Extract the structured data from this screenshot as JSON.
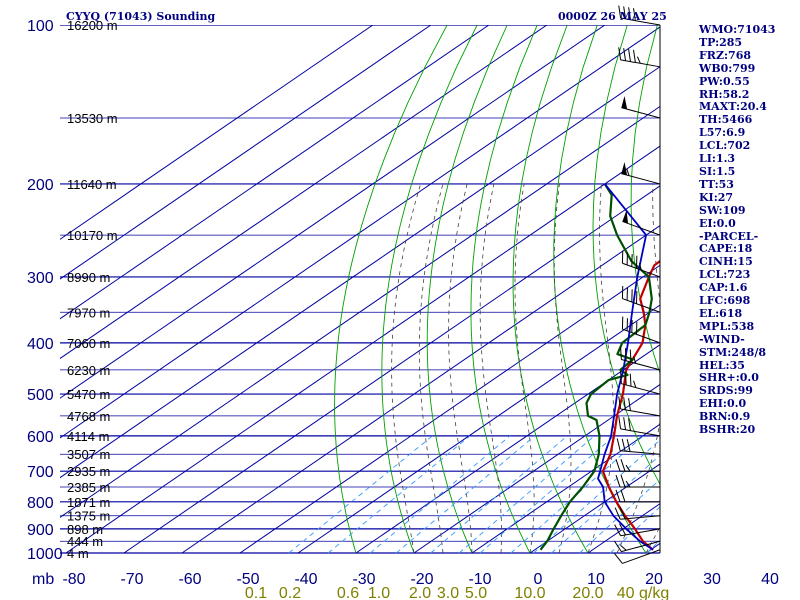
{
  "title": "CYYQ (71043) Sounding",
  "timestamp": "0000Z 26 MAY 25",
  "stats": [
    "WMO:71043",
    "TP:285",
    "FRZ:768",
    "WB0:799",
    "PW:0.55",
    "RH:58.2",
    "MAXT:20.4",
    "TH:5466",
    "L57:6.9",
    "LCL:702",
    "LI:1.3",
    "SI:1.5",
    "TT:53",
    "KI:27",
    "SW:109",
    "EI:0.0",
    "-PARCEL-",
    "CAPE:18",
    "CINH:15",
    "LCL:723",
    "CAP:1.6",
    "LFC:698",
    "EL:618",
    "MPL:538",
    "-WIND-",
    "STM:248/8",
    "HEL:35",
    "SHR+:0.0",
    "SRDS:99",
    "EHI:0.0",
    "BRN:0.9",
    "BSHR:20"
  ],
  "colors": {
    "isobar": "#0000a0",
    "isotherm": "#0000a0",
    "dry_adiabat": "#00a000",
    "moist_adiabat": "#404040",
    "mixing_ratio": "#3399ff",
    "temperature": "#c00000",
    "dewpoint": "#005000",
    "parcel": "#0000c0",
    "wind_barb": "#000000"
  },
  "chart_data": {
    "type": "line",
    "xlabel": "",
    "ylabel": "mb",
    "pressure_ticks": [
      100,
      200,
      300,
      400,
      500,
      600,
      700,
      800,
      900,
      1000
    ],
    "temperature_ticks": [
      -80,
      -70,
      -60,
      -50,
      -40,
      -30,
      -20,
      -10,
      0,
      10,
      20,
      30,
      40
    ],
    "height_labels": [
      {
        "p": 100,
        "label": "16200 m"
      },
      {
        "p": 150,
        "label": "13530 m"
      },
      {
        "p": 200,
        "label": "11640 m"
      },
      {
        "p": 250,
        "label": "10170 m"
      },
      {
        "p": 300,
        "label": "8990 m"
      },
      {
        "p": 350,
        "label": "7970 m"
      },
      {
        "p": 400,
        "label": "7060 m"
      },
      {
        "p": 450,
        "label": "6230 m"
      },
      {
        "p": 500,
        "label": "5470 m"
      },
      {
        "p": 550,
        "label": "4768 m"
      },
      {
        "p": 600,
        "label": "4114 m"
      },
      {
        "p": 650,
        "label": "3507 m"
      },
      {
        "p": 700,
        "label": "2935 m"
      },
      {
        "p": 750,
        "label": "2385 m"
      },
      {
        "p": 800,
        "label": "1871 m"
      },
      {
        "p": 850,
        "label": "1375 m"
      },
      {
        "p": 900,
        "label": "898 m"
      },
      {
        "p": 950,
        "label": "444 m"
      },
      {
        "p": 1000,
        "label": "4 m"
      }
    ],
    "mixing_ratio_ticks": [
      "0.1",
      "0.2",
      "0.6",
      "1.0",
      "2.0",
      "3.0",
      "5.0",
      "10.0",
      "20.0",
      "40 g/kg"
    ],
    "series": [
      {
        "key": "temperature",
        "points": [
          [
            986,
            20.4
          ],
          [
            950,
            16.5
          ],
          [
            900,
            12.0
          ],
          [
            850,
            7.0
          ],
          [
            800,
            2.0
          ],
          [
            750,
            -3.0
          ],
          [
            700,
            -8.0
          ],
          [
            650,
            -11.0
          ],
          [
            600,
            -15.0
          ],
          [
            550,
            -19.5
          ],
          [
            500,
            -24.0
          ],
          [
            450,
            -29.5
          ],
          [
            400,
            -33.5
          ],
          [
            370,
            -37.5
          ],
          [
            350,
            -41.0
          ],
          [
            330,
            -45.0
          ],
          [
            300,
            -49.0
          ],
          [
            285,
            -51.0
          ],
          [
            250,
            -51.5
          ],
          [
            220,
            -50.5
          ],
          [
            200,
            -49.0
          ],
          [
            170,
            -48.0
          ],
          [
            150,
            -49.0
          ],
          [
            130,
            -47.0
          ],
          [
            115,
            -48.0
          ],
          [
            100,
            -48.5
          ]
        ]
      },
      {
        "key": "dewpoint",
        "points": [
          [
            986,
            1.0
          ],
          [
            950,
            0.0
          ],
          [
            900,
            -2.0
          ],
          [
            850,
            -4.0
          ],
          [
            800,
            -6.0
          ],
          [
            750,
            -7.5
          ],
          [
            700,
            -9.5
          ],
          [
            650,
            -13.0
          ],
          [
            600,
            -17.5
          ],
          [
            560,
            -22.0
          ],
          [
            550,
            -24.5
          ],
          [
            520,
            -28.0
          ],
          [
            500,
            -29.5
          ],
          [
            470,
            -30.0
          ],
          [
            460,
            -28.0
          ],
          [
            450,
            -30.5
          ],
          [
            430,
            -31.0
          ],
          [
            420,
            -35.0
          ],
          [
            400,
            -37.0
          ],
          [
            370,
            -37.5
          ],
          [
            350,
            -40.0
          ],
          [
            330,
            -43.0
          ],
          [
            300,
            -49.0
          ],
          [
            280,
            -56.0
          ],
          [
            250,
            -65.0
          ],
          [
            230,
            -71.0
          ],
          [
            210,
            -76.0
          ],
          [
            200,
            -80.0
          ]
        ]
      },
      {
        "key": "parcel",
        "points": [
          [
            986,
            20.4
          ],
          [
            950,
            16.0
          ],
          [
            900,
            10.5
          ],
          [
            850,
            5.0
          ],
          [
            800,
            0.0
          ],
          [
            750,
            -4.0
          ],
          [
            723,
            -7.0
          ],
          [
            700,
            -8.5
          ],
          [
            650,
            -12.0
          ],
          [
            600,
            -15.5
          ],
          [
            550,
            -20.0
          ],
          [
            500,
            -25.0
          ],
          [
            450,
            -30.0
          ],
          [
            400,
            -36.0
          ],
          [
            350,
            -43.0
          ],
          [
            300,
            -51.0
          ],
          [
            250,
            -60.0
          ],
          [
            200,
            -80.0
          ]
        ]
      }
    ],
    "wind_barbs": [
      {
        "p": 986,
        "dir": 250,
        "spd": 10
      },
      {
        "p": 950,
        "dir": 255,
        "spd": 15
      },
      {
        "p": 900,
        "dir": 260,
        "spd": 20
      },
      {
        "p": 850,
        "dir": 265,
        "spd": 20
      },
      {
        "p": 800,
        "dir": 270,
        "spd": 20
      },
      {
        "p": 750,
        "dir": 270,
        "spd": 25
      },
      {
        "p": 700,
        "dir": 270,
        "spd": 25
      },
      {
        "p": 650,
        "dir": 275,
        "spd": 30
      },
      {
        "p": 600,
        "dir": 280,
        "spd": 30
      },
      {
        "p": 550,
        "dir": 280,
        "spd": 30
      },
      {
        "p": 500,
        "dir": 285,
        "spd": 35
      },
      {
        "p": 450,
        "dir": 285,
        "spd": 35
      },
      {
        "p": 400,
        "dir": 290,
        "spd": 40
      },
      {
        "p": 350,
        "dir": 290,
        "spd": 40
      },
      {
        "p": 300,
        "dir": 290,
        "spd": 45
      },
      {
        "p": 250,
        "dir": 290,
        "spd": 50
      },
      {
        "p": 200,
        "dir": 285,
        "spd": 55
      },
      {
        "p": 150,
        "dir": 285,
        "spd": 50
      },
      {
        "p": 120,
        "dir": 280,
        "spd": 45
      },
      {
        "p": 100,
        "dir": 280,
        "spd": 40
      }
    ]
  }
}
